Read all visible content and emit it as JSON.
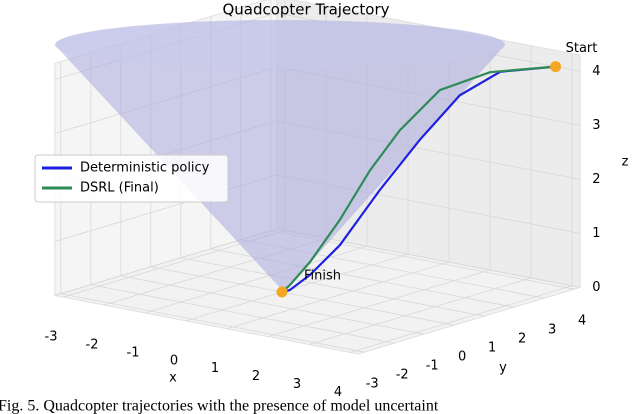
{
  "chart_data": {
    "type": "line3d",
    "title": "Quadcopter Trajectory",
    "xlabel": "x",
    "ylabel": "y",
    "zlabel": "z",
    "xlim": [
      -3.2,
      4.2
    ],
    "ylim": [
      -3.2,
      4.2
    ],
    "zlim": [
      0,
      4.3
    ],
    "xticks": [
      -3,
      -2,
      -1,
      0,
      1,
      2,
      3,
      4
    ],
    "yticks": [
      -3,
      -2,
      -1,
      0,
      1,
      2,
      3,
      4
    ],
    "zticks": [
      0,
      1,
      2,
      3,
      4
    ],
    "grid": true,
    "legend": "left",
    "series": [
      {
        "name": "Deterministic policy",
        "color": "#1f1fe0",
        "x": [
          3.6,
          2.87,
          2.34,
          1.81,
          1.29,
          0.76,
          0.37,
          0.1,
          0
        ],
        "y": [
          4.2,
          3.35,
          2.73,
          2.12,
          1.5,
          0.89,
          0.43,
          0.12,
          0
        ],
        "z": [
          4,
          3.94,
          3.53,
          2.73,
          1.83,
          0.83,
          0.3,
          0.03,
          0
        ]
      },
      {
        "name": "DSRL (Final)",
        "color": "#2e8b57",
        "x": [
          3.6,
          2.74,
          2.08,
          1.55,
          1.16,
          0.76,
          0.37,
          0.1,
          0
        ],
        "y": [
          4.2,
          3.19,
          2.42,
          1.81,
          1.35,
          0.89,
          0.43,
          0.12,
          0
        ],
        "z": [
          4,
          3.94,
          3.64,
          2.92,
          2.2,
          1.3,
          0.54,
          0.12,
          0
        ]
      }
    ],
    "annotations": [
      {
        "text": "Start",
        "x": 3.6,
        "y": 4.2,
        "z": 4
      },
      {
        "text": "Finish",
        "x": 0,
        "y": 0,
        "z": 0
      }
    ]
  },
  "caption": "Fig. 5.   Quadcopter trajectories with the presence of model uncertaint"
}
